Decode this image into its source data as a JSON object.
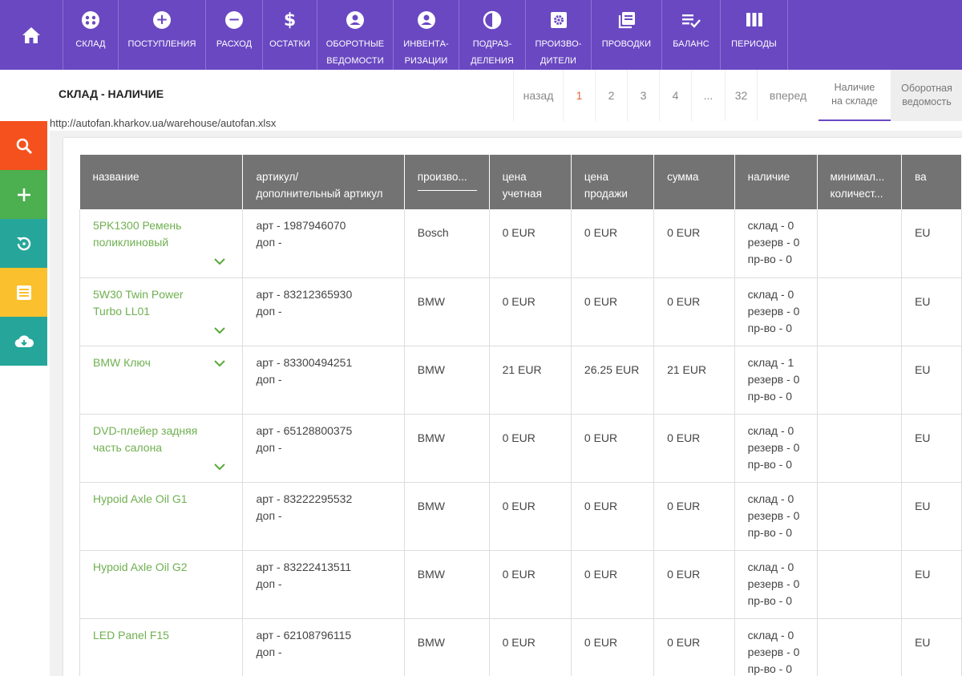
{
  "nav": {
    "home_icon": "home-icon",
    "items": [
      {
        "icon": "warehouse-icon",
        "lines": [
          "склад"
        ]
      },
      {
        "icon": "plus-circle-icon",
        "lines": [
          "поступления"
        ]
      },
      {
        "icon": "minus-circle-icon",
        "lines": [
          "расход"
        ]
      },
      {
        "icon": "dollar-icon",
        "lines": [
          "остатки"
        ]
      },
      {
        "icon": "user-circle-icon",
        "lines": [
          "оборотные",
          "ведомости"
        ]
      },
      {
        "icon": "user-circle-icon",
        "lines": [
          "инвента-",
          "ризации"
        ]
      },
      {
        "icon": "pie-icon",
        "lines": [
          "подраз-",
          "деления"
        ]
      },
      {
        "icon": "gear-box-icon",
        "lines": [
          "произво-",
          "дители"
        ]
      },
      {
        "icon": "books-icon",
        "lines": [
          "проводки"
        ]
      },
      {
        "icon": "checklist-icon",
        "lines": [
          "баланс"
        ]
      },
      {
        "icon": "columns-icon",
        "lines": [
          "периоды"
        ]
      }
    ]
  },
  "page": {
    "title": "СКЛАД - НАЛИЧИЕ",
    "url": "http://autofan.kharkov.ua/warehouse/autofan.xlsx"
  },
  "pagination": {
    "prev": "назад",
    "pages": [
      "1",
      "2",
      "3",
      "4",
      "...",
      "32"
    ],
    "current": "1",
    "next": "вперед"
  },
  "view_tabs": [
    {
      "lines": [
        "Наличие",
        "на складе"
      ],
      "active": true
    },
    {
      "lines": [
        "Оборотная",
        "ведомость"
      ],
      "active": false
    }
  ],
  "sidebar": [
    {
      "name": "search-button",
      "icon": "search-icon",
      "color": "#f4511e"
    },
    {
      "name": "add-button",
      "icon": "plus-icon",
      "color": "#4caf50"
    },
    {
      "name": "history-button",
      "icon": "history-icon",
      "color": "#26a69a"
    },
    {
      "name": "list-button",
      "icon": "list-icon",
      "color": "#fbc02d"
    },
    {
      "name": "download-button",
      "icon": "cloud-download-icon",
      "color": "#26a69a"
    }
  ],
  "table": {
    "columns": [
      {
        "lines": [
          "название"
        ]
      },
      {
        "lines": [
          "артикул/",
          "дополнительный артикул"
        ]
      },
      {
        "lines": [
          "произво..."
        ]
      },
      {
        "lines": [
          "цена",
          "учетная"
        ]
      },
      {
        "lines": [
          "цена",
          "продажи"
        ]
      },
      {
        "lines": [
          "сумма"
        ]
      },
      {
        "lines": [
          "наличие"
        ]
      },
      {
        "lines": [
          "минимал...",
          "количест..."
        ]
      },
      {
        "lines": [
          "ва"
        ]
      }
    ],
    "rows": [
      {
        "name": "5PK1300 Ремень поликлиновый",
        "art": "арт - 1987946070",
        "dop": "доп -",
        "maker": "Bosch",
        "price_acc": "0 EUR",
        "price_sale": "0 EUR",
        "sum": "0 EUR",
        "stock": [
          "склад - 0",
          "резерв - 0",
          "пр-во - 0"
        ],
        "min": "",
        "cur": "EU"
      },
      {
        "name": "5W30 Twin Power Turbo LL01",
        "art": "арт - 83212365930",
        "dop": "доп -",
        "maker": "BMW",
        "price_acc": "0 EUR",
        "price_sale": "0 EUR",
        "sum": "0 EUR",
        "stock": [
          "склад - 0",
          "резерв - 0",
          "пр-во - 0"
        ],
        "min": "",
        "cur": "EU"
      },
      {
        "name": "BMW Ключ",
        "art": "арт - 83300494251",
        "dop": "доп -",
        "maker": "BMW",
        "price_acc": "21 EUR",
        "price_sale": "26.25 EUR",
        "sum": "21 EUR",
        "stock": [
          "склад - 1",
          "резерв - 0",
          "пр-во - 0"
        ],
        "min": "",
        "cur": "EU"
      },
      {
        "name": "DVD-плейер задняя часть салона",
        "art": "арт - 65128800375",
        "dop": "доп -",
        "maker": "BMW",
        "price_acc": "0 EUR",
        "price_sale": "0 EUR",
        "sum": "0 EUR",
        "stock": [
          "склад - 0",
          "резерв - 0",
          "пр-во - 0"
        ],
        "min": "",
        "cur": "EU"
      },
      {
        "name": "Hypoid Axle Oil G1",
        "art": "арт - 83222295532",
        "dop": "доп -",
        "maker": "BMW",
        "price_acc": "0 EUR",
        "price_sale": "0 EUR",
        "sum": "0 EUR",
        "stock": [
          "склад - 0",
          "резерв - 0",
          "пр-во - 0"
        ],
        "min": "",
        "cur": "EU"
      },
      {
        "name": "Hypoid Axle Oil G2",
        "art": "арт - 83222413511",
        "dop": "доп -",
        "maker": "BMW",
        "price_acc": "0 EUR",
        "price_sale": "0 EUR",
        "sum": "0 EUR",
        "stock": [
          "склад - 0",
          "резерв - 0",
          "пр-во - 0"
        ],
        "min": "",
        "cur": "EU"
      },
      {
        "name": "LED Panel F15",
        "art": "арт - 62108796115",
        "dop": "доп -",
        "maker": "BMW",
        "price_acc": "0 EUR",
        "price_sale": "0 EUR",
        "sum": "0 EUR",
        "stock": [
          "склад - 0",
          "резерв - 0",
          "пр-во - 0"
        ],
        "min": "",
        "cur": "EU"
      }
    ]
  },
  "colors": {
    "nav_bg": "#6a48c2",
    "header_bg": "#737373",
    "product_link": "#6fb050",
    "active_page": "#e2693a"
  }
}
